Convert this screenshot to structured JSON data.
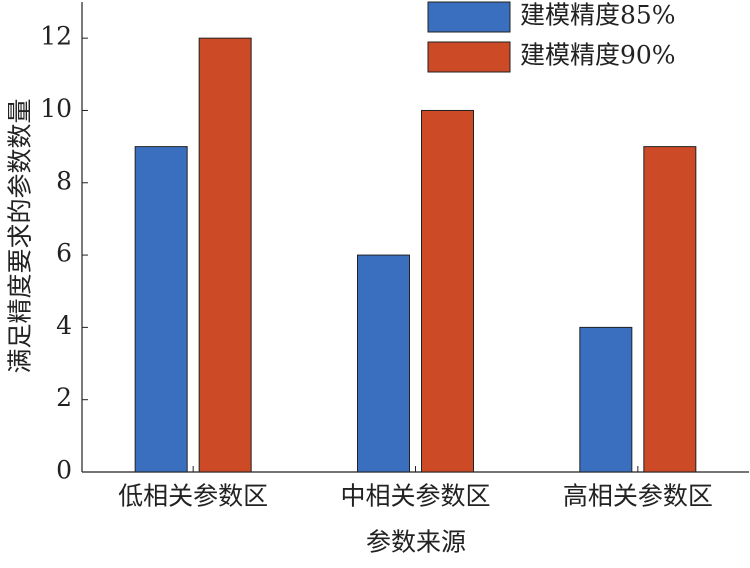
{
  "chart_data": {
    "type": "bar",
    "categories": [
      "低相关参数区",
      "中相关参数区",
      "高相关参数区"
    ],
    "series": [
      {
        "name": "建模精度85%",
        "color": "#3a6fbf",
        "values": [
          9,
          6,
          4
        ]
      },
      {
        "name": "建模精度90%",
        "color": "#cc4a26",
        "values": [
          12,
          10,
          9
        ]
      }
    ],
    "x_label": "参数来源",
    "y_label": "满足精度要求的参数数量",
    "ylim": [
      0,
      13
    ],
    "yticks": [
      0,
      2,
      4,
      6,
      8,
      10,
      12
    ],
    "legend": "top-right"
  }
}
